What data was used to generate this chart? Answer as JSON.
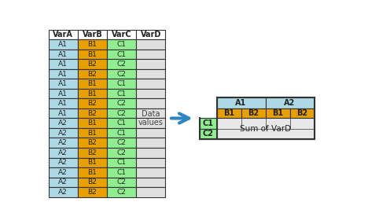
{
  "left_table": {
    "headers": [
      "VarA",
      "VarB",
      "VarC",
      "VarD"
    ],
    "col_colors": [
      "#add8e6",
      "#e8a000",
      "#90ee90",
      "#e0e0e0"
    ],
    "header_color": "#ffffff",
    "rows": [
      [
        "A1",
        "B1",
        "C1",
        ""
      ],
      [
        "A1",
        "B1",
        "C1",
        ""
      ],
      [
        "A1",
        "B2",
        "C2",
        ""
      ],
      [
        "A1",
        "B2",
        "C2",
        ""
      ],
      [
        "A1",
        "B1",
        "C1",
        ""
      ],
      [
        "A1",
        "B1",
        "C1",
        ""
      ],
      [
        "A1",
        "B2",
        "C2",
        ""
      ],
      [
        "A1",
        "B2",
        "C2",
        ""
      ],
      [
        "A2",
        "B1",
        "C1",
        ""
      ],
      [
        "A2",
        "B1",
        "C1",
        ""
      ],
      [
        "A2",
        "B2",
        "C2",
        ""
      ],
      [
        "A2",
        "B2",
        "C2",
        ""
      ],
      [
        "A2",
        "B1",
        "C1",
        ""
      ],
      [
        "A2",
        "B1",
        "C1",
        ""
      ],
      [
        "A2",
        "B2",
        "C2",
        ""
      ],
      [
        "A2",
        "B2",
        "C2",
        ""
      ]
    ],
    "data_label": "Data\nvalues"
  },
  "arrow_color": "#2e86c1",
  "right_table": {
    "color_A": "#add8e6",
    "color_B": "#e8a000",
    "color_C": "#90ee90",
    "color_data": "#e8e8e8",
    "A_labels": [
      "A1",
      "A2"
    ],
    "B_labels": [
      "B1",
      "B2",
      "B1",
      "B2"
    ],
    "C_labels": [
      "C1",
      "C2"
    ],
    "data_text": "Sum of VarD"
  },
  "border_color": "#333333",
  "font_size": 6.5
}
